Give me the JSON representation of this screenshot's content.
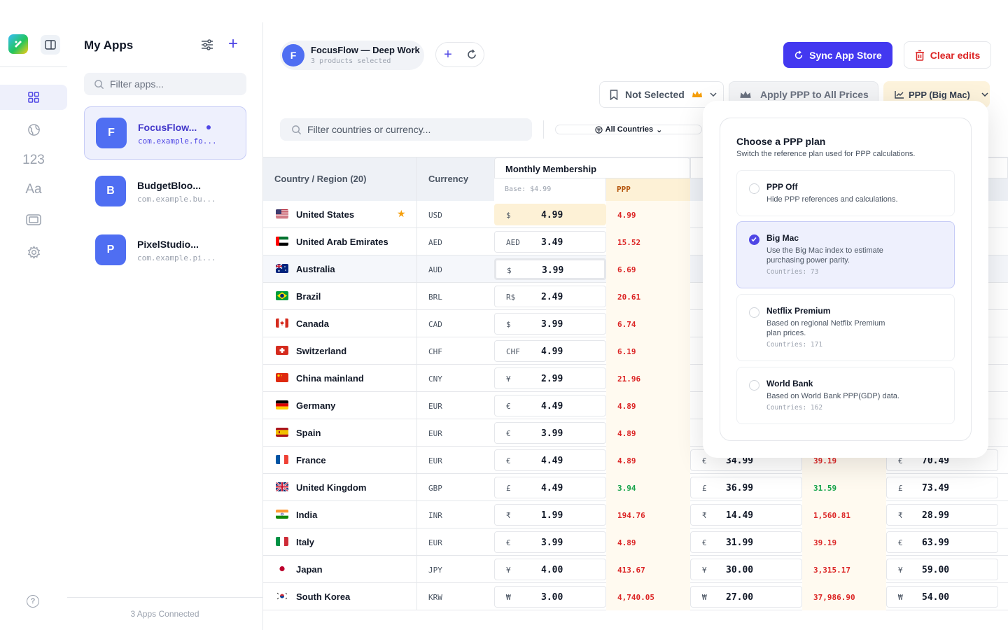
{
  "sidebar": {
    "apps_title": "My Apps",
    "search_placeholder": "Filter apps...",
    "apps": [
      {
        "initial": "F",
        "name": "FocusFlow...",
        "bundle": "com.example.fo..."
      },
      {
        "initial": "B",
        "name": "BudgetBloo...",
        "bundle": "com.example.bu..."
      },
      {
        "initial": "P",
        "name": "PixelStudio...",
        "bundle": "com.example.pi..."
      }
    ],
    "rail_text_123": "123",
    "rail_text_aa": "Aa",
    "footer": "3 Apps Connected",
    "help": "?"
  },
  "header": {
    "app_initial": "F",
    "app_name": "FocusFlow — Deep Work",
    "app_sub": "3 products selected",
    "sync_label": "Sync App Store",
    "clear_label": "Clear edits",
    "not_selected": "Not Selected",
    "apply_ppp": "Apply PPP to All Prices",
    "ppp_plan": "PPP (Big Mac)"
  },
  "filter": {
    "placeholder": "Filter countries or currency...",
    "all_countries": "All Countries"
  },
  "table": {
    "col_country": "Country / Region (20)",
    "col_currency": "Currency",
    "product_name": "Monthly Membership",
    "base": "Base: $4.99",
    "ppp_label": "PPP",
    "rows": [
      {
        "flag": "us",
        "country": "United States",
        "star": "★",
        "ccy": "USD",
        "sym": "$",
        "price": "4.99",
        "ppp": "4.99",
        "ppp_color": "red",
        "p2sym": "",
        "p2": "",
        "ppp2": "",
        "p3sym": "",
        "p3": ""
      },
      {
        "flag": "ae",
        "country": "United Arab Emirates",
        "star": "",
        "ccy": "AED",
        "sym": "AED",
        "price": "3.49",
        "ppp": "15.52",
        "ppp_color": "red",
        "p2sym": "",
        "p2": "",
        "ppp2": "",
        "p3sym": "",
        "p3": ""
      },
      {
        "flag": "au",
        "country": "Australia",
        "star": "",
        "ccy": "AUD",
        "sym": "$",
        "price": "3.99",
        "ppp": "6.69",
        "ppp_color": "red",
        "p2sym": "",
        "p2": "",
        "ppp2": "",
        "p3sym": "",
        "p3": ""
      },
      {
        "flag": "br",
        "country": "Brazil",
        "star": "",
        "ccy": "BRL",
        "sym": "R$",
        "price": "2.49",
        "ppp": "20.61",
        "ppp_color": "red",
        "p2sym": "",
        "p2": "",
        "ppp2": "",
        "p3sym": "",
        "p3": ""
      },
      {
        "flag": "ca",
        "country": "Canada",
        "star": "",
        "ccy": "CAD",
        "sym": "$",
        "price": "3.99",
        "ppp": "6.74",
        "ppp_color": "red",
        "p2sym": "",
        "p2": "",
        "ppp2": "",
        "p3sym": "",
        "p3": ""
      },
      {
        "flag": "ch",
        "country": "Switzerland",
        "star": "",
        "ccy": "CHF",
        "sym": "CHF",
        "price": "4.99",
        "ppp": "6.19",
        "ppp_color": "red",
        "p2sym": "",
        "p2": "",
        "ppp2": "",
        "p3sym": "",
        "p3": ""
      },
      {
        "flag": "cn",
        "country": "China mainland",
        "star": "",
        "ccy": "CNY",
        "sym": "¥",
        "price": "2.99",
        "ppp": "21.96",
        "ppp_color": "red",
        "p2sym": "",
        "p2": "",
        "ppp2": "",
        "p3sym": "",
        "p3": ""
      },
      {
        "flag": "de",
        "country": "Germany",
        "star": "",
        "ccy": "EUR",
        "sym": "€",
        "price": "4.49",
        "ppp": "4.89",
        "ppp_color": "red",
        "p2sym": "",
        "p2": "",
        "ppp2": "",
        "p3sym": "",
        "p3": ""
      },
      {
        "flag": "es",
        "country": "Spain",
        "star": "",
        "ccy": "EUR",
        "sym": "€",
        "price": "3.99",
        "ppp": "4.89",
        "ppp_color": "red",
        "p2sym": "",
        "p2": "",
        "ppp2": "",
        "p3sym": "",
        "p3": ""
      },
      {
        "flag": "fr",
        "country": "France",
        "star": "",
        "ccy": "EUR",
        "sym": "€",
        "price": "4.49",
        "ppp": "4.89",
        "ppp_color": "red",
        "p2sym": "€",
        "p2": "34.99",
        "ppp2": "39.19",
        "ppp2_color": "red",
        "p3sym": "€",
        "p3": "70.49"
      },
      {
        "flag": "gb",
        "country": "United Kingdom",
        "star": "",
        "ccy": "GBP",
        "sym": "£",
        "price": "4.49",
        "ppp": "3.94",
        "ppp_color": "green",
        "p2sym": "£",
        "p2": "36.99",
        "ppp2": "31.59",
        "ppp2_color": "green",
        "p3sym": "£",
        "p3": "73.49"
      },
      {
        "flag": "in",
        "country": "India",
        "star": "",
        "ccy": "INR",
        "sym": "₹",
        "price": "1.99",
        "ppp": "194.76",
        "ppp_color": "red",
        "p2sym": "₹",
        "p2": "14.49",
        "ppp2": "1,560.81",
        "ppp2_color": "red",
        "p3sym": "₹",
        "p3": "28.99"
      },
      {
        "flag": "it",
        "country": "Italy",
        "star": "",
        "ccy": "EUR",
        "sym": "€",
        "price": "3.99",
        "ppp": "4.89",
        "ppp_color": "red",
        "p2sym": "€",
        "p2": "31.99",
        "ppp2": "39.19",
        "ppp2_color": "red",
        "p3sym": "€",
        "p3": "63.99"
      },
      {
        "flag": "jp",
        "country": "Japan",
        "star": "",
        "ccy": "JPY",
        "sym": "¥",
        "price": "4.00",
        "ppp": "413.67",
        "ppp_color": "red",
        "p2sym": "¥",
        "p2": "30.00",
        "ppp2": "3,315.17",
        "ppp2_color": "red",
        "p3sym": "¥",
        "p3": "59.00"
      },
      {
        "flag": "kr",
        "country": "South Korea",
        "star": "",
        "ccy": "KRW",
        "sym": "₩",
        "price": "3.00",
        "ppp": "4,740.05",
        "ppp_color": "red",
        "p2sym": "₩",
        "p2": "27.00",
        "ppp2": "37,986.90",
        "ppp2_color": "red",
        "p3sym": "₩",
        "p3": "54.00"
      }
    ]
  },
  "popover": {
    "title": "Choose a PPP plan",
    "subtitle": "Switch the reference plan used for PPP calculations.",
    "options": [
      {
        "name": "PPP Off",
        "desc": "Hide PPP references and calculations.",
        "count": ""
      },
      {
        "name": "Big Mac",
        "desc": "Use the Big Mac index to estimate purchasing power parity.",
        "count": "Countries: 73"
      },
      {
        "name": "Netflix Premium",
        "desc": "Based on regional Netflix Premium plan prices.",
        "count": "Countries: 171"
      },
      {
        "name": "World Bank",
        "desc": "Based on World Bank PPP(GDP) data.",
        "count": "Countries: 162"
      }
    ],
    "selected": "Big Mac"
  },
  "colors": {
    "accent": "#4338f0",
    "danger": "#dc2626",
    "ppp_header_bg": "#fdf1d6",
    "ppp_cell_bg": "#fffaf0"
  }
}
